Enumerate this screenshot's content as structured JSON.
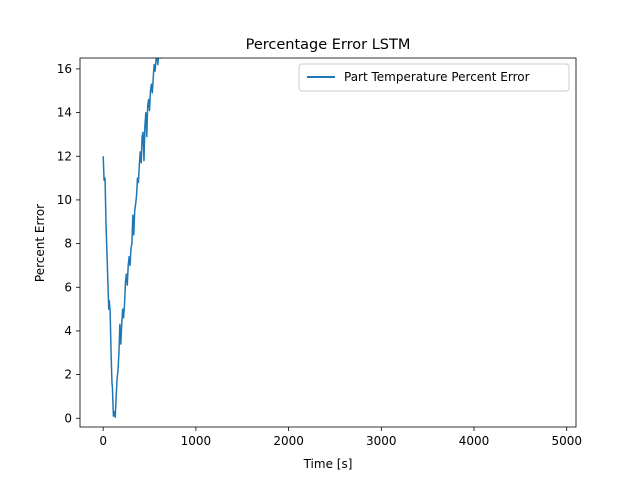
{
  "chart_data": {
    "type": "line",
    "title": "Percentage Error LSTM",
    "xlabel": "Time [s]",
    "ylabel": "Percent Error",
    "xlim": [
      -250,
      5100
    ],
    "ylim": [
      -0.4,
      16.5
    ],
    "xticks": [
      0,
      1000,
      2000,
      3000,
      4000,
      5000
    ],
    "xtick_labels": [
      "0",
      "1000",
      "2000",
      "3000",
      "4000",
      "5000"
    ],
    "yticks": [
      0,
      2,
      4,
      6,
      8,
      10,
      12,
      14,
      16
    ],
    "ytick_labels": [
      "0",
      "2",
      "4",
      "6",
      "8",
      "10",
      "12",
      "14",
      "16"
    ],
    "legend_position": "top-right",
    "series": [
      {
        "name": "Part Temperature Percent Error",
        "color": "#1f77b4",
        "x": [
          0,
          10,
          20,
          30,
          45,
          60,
          65,
          75,
          85,
          95,
          100,
          110,
          120,
          130,
          140,
          150,
          160,
          170,
          180,
          190,
          200,
          210,
          220,
          230,
          240,
          250,
          260,
          270,
          280,
          290,
          300,
          310,
          320,
          330,
          340,
          350,
          360,
          370,
          380,
          390,
          400,
          410,
          420,
          430,
          440,
          450,
          460,
          470,
          480,
          490,
          500,
          510,
          520,
          530,
          540,
          550,
          560,
          570,
          580,
          590,
          600,
          610,
          620,
          630,
          640,
          650
        ],
        "y": [
          12.0,
          10.9,
          11.0,
          9.0,
          7.0,
          5.0,
          5.4,
          4.9,
          3.0,
          1.6,
          1.4,
          0.1,
          0.3,
          0.05,
          1.0,
          1.8,
          2.2,
          3.0,
          4.3,
          3.4,
          4.3,
          5.0,
          4.6,
          5.2,
          6.2,
          6.6,
          6.1,
          7.0,
          7.4,
          7.0,
          7.8,
          8.0,
          9.3,
          8.4,
          9.5,
          9.8,
          10.2,
          11.0,
          10.8,
          11.6,
          12.2,
          11.7,
          12.9,
          13.1,
          11.8,
          13.4,
          14.0,
          12.9,
          14.3,
          14.6,
          14.1,
          15.0,
          15.3,
          14.9,
          15.6,
          16.2,
          15.9,
          16.4,
          16.6,
          16.2,
          16.8,
          17.0,
          16.5,
          17.2,
          16.9,
          17.4
        ]
      }
    ]
  }
}
